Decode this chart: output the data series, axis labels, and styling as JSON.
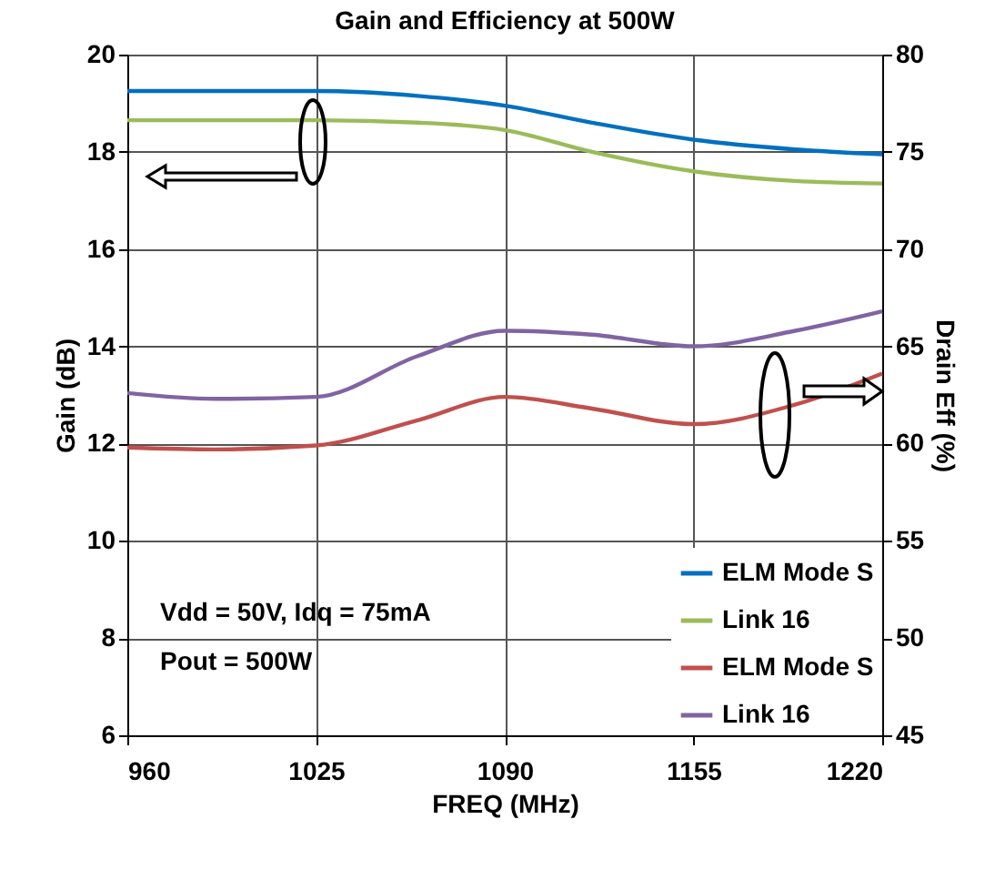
{
  "chart_data": {
    "type": "line",
    "title": "Gain and Efficiency at 500W",
    "xlabel": "FREQ (MHz)",
    "ylabel": "Gain (dB)",
    "y2label": "Drain Eff (%)",
    "x": [
      960,
      990,
      1025,
      1060,
      1090,
      1120,
      1155,
      1190,
      1220
    ],
    "series": [
      {
        "name": "ELM Mode S",
        "color": "#0070c0",
        "values": [
          19.25,
          19.25,
          19.25,
          19.15,
          18.95,
          18.6,
          18.25,
          18.05,
          17.95
        ]
      },
      {
        "name": "Link 16",
        "color": "#9bbb59",
        "values": [
          18.65,
          18.65,
          18.65,
          18.6,
          18.45,
          18.0,
          17.6,
          17.4,
          17.35
        ]
      },
      {
        "name": "ELM Mode S",
        "color": "#c0504d",
        "axis": "y2",
        "values": [
          59.8,
          59.7,
          59.9,
          61.2,
          62.4,
          61.8,
          61.0,
          62.0,
          63.6
        ]
      },
      {
        "name": "Link 16",
        "color": "#8064a2",
        "axis": "y2",
        "values": [
          62.6,
          62.3,
          62.4,
          64.5,
          65.8,
          65.6,
          65.0,
          65.8,
          66.8
        ]
      }
    ],
    "xlim": [
      960,
      1220
    ],
    "xticks": [
      960,
      1025,
      1090,
      1155,
      1220
    ],
    "ylim": [
      6,
      20
    ],
    "yticks": [
      6,
      8,
      10,
      12,
      14,
      16,
      18,
      20
    ],
    "y2lim": [
      45,
      80
    ],
    "y2ticks": [
      45,
      50,
      55,
      60,
      65,
      70,
      75,
      80
    ],
    "annotations": [
      "Vdd = 50V, Idq = 75mA",
      "Pout = 500W"
    ],
    "grid": true,
    "legend": "bottom right",
    "marker": "none",
    "line_style": "solid"
  }
}
